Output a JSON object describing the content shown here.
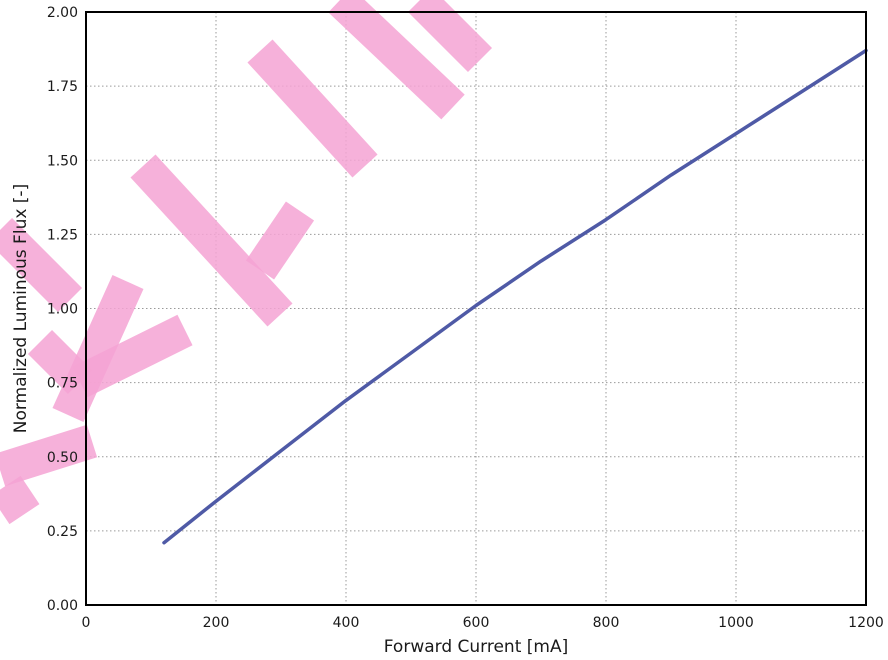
{
  "chart_data": {
    "type": "line",
    "title": "",
    "xlabel": "Forward Current [mA]",
    "ylabel": "Normalized Luminous Flux [-]",
    "xlim": [
      0,
      1200
    ],
    "ylim": [
      0,
      2.0
    ],
    "xticks": [
      "0",
      "200",
      "400",
      "600",
      "800",
      "1000",
      "1200"
    ],
    "yticks": [
      "0.00",
      "0.25",
      "0.50",
      "0.75",
      "1.00",
      "1.25",
      "1.50",
      "1.75",
      "2.00"
    ],
    "grid": true,
    "series": [
      {
        "color": "#4f5aa6",
        "x": [
          120,
          200,
          300,
          400,
          500,
          600,
          700,
          800,
          900,
          1000,
          1100,
          1200
        ],
        "y": [
          0.21,
          0.35,
          0.52,
          0.69,
          0.85,
          1.01,
          1.16,
          1.3,
          1.45,
          1.59,
          1.73,
          1.87
        ]
      }
    ]
  },
  "watermark": {
    "color": "#f5a3d3"
  }
}
